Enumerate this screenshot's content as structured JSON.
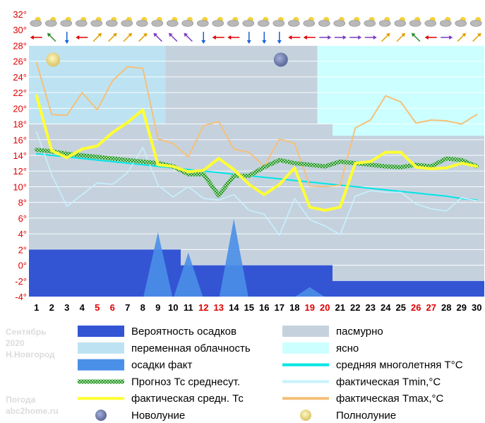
{
  "sidebar": {
    "month": "Сентябрь",
    "year": "2020",
    "city": "Н.Новгород",
    "site_label": "Погода",
    "site": "abc2home.ru"
  },
  "legend": {
    "left": [
      {
        "label": "Вероятность осадков",
        "color": "#3355d4",
        "kind": "box"
      },
      {
        "label": "переменная облачность",
        "color": "#bde3f2",
        "kind": "box"
      },
      {
        "label": "осадки факт",
        "color": "#4a8fe8",
        "kind": "box"
      },
      {
        "label": "Прогноз Тс среднесут.",
        "color": "#2e8b2e",
        "kind": "hatch"
      },
      {
        "label": "фактическая средн. Тс",
        "color": "#ffff33",
        "kind": "line"
      },
      {
        "label": "Новолуние",
        "color": "#6f7fb0",
        "kind": "newmoon"
      }
    ],
    "right": [
      {
        "label": "пасмурно",
        "color": "#c5d2de",
        "kind": "box"
      },
      {
        "label": "ясно",
        "color": "#ccffff",
        "kind": "box"
      },
      {
        "label": "средняя многолетняя T°C",
        "color": "#00e5e5",
        "kind": "line"
      },
      {
        "label": "фактическая Tmin,°C",
        "color": "#c8f2ff",
        "kind": "line"
      },
      {
        "label": "фактическая Tmax,°C",
        "color": "#f5c07a",
        "kind": "line"
      },
      {
        "label": "Полнолуние",
        "color": "#f2e38a",
        "kind": "fullmoon"
      }
    ]
  },
  "chart_data": {
    "type": "line",
    "ylim": [
      -4,
      32
    ],
    "yticks": [
      "-4°",
      "-2°",
      "0°",
      "2°",
      "4°",
      "6°",
      "8°",
      "10°",
      "12°",
      "14°",
      "16°",
      "18°",
      "20°",
      "22°",
      "24°",
      "26°",
      "28°",
      "30°",
      "32°"
    ],
    "x": [
      "1",
      "2",
      "3",
      "4",
      "5",
      "6",
      "7",
      "8",
      "9",
      "10",
      "11",
      "12",
      "13",
      "14",
      "15",
      "16",
      "17",
      "18",
      "19",
      "20",
      "21",
      "22",
      "23",
      "24",
      "25",
      "26",
      "27",
      "28",
      "29",
      "30"
    ],
    "weekend_days": [
      "5",
      "6",
      "12",
      "13",
      "19",
      "20",
      "26",
      "27"
    ],
    "colors": {
      "weekend": "#e00000",
      "weekday": "#000000",
      "ytick": "#e00000"
    },
    "sky_segments": [
      {
        "from": 1,
        "to": 10,
        "sky": "переменная облачность"
      },
      {
        "from": 10,
        "to": 20,
        "sky": "пасмурно"
      },
      {
        "from": 20,
        "to": 30,
        "sky": "ясно"
      }
    ],
    "precip_probability_segments": [
      {
        "from": 1,
        "to": 10,
        "value": 2
      },
      {
        "from": 10,
        "to": 20,
        "value": 0
      },
      {
        "from": 20,
        "to": 30,
        "value": -2
      }
    ],
    "series": [
      {
        "name": "средняя многолетняя T°C",
        "color": "#00e5e5",
        "values": [
          14.2,
          14.0,
          13.8,
          13.6,
          13.4,
          13.2,
          13.0,
          12.8,
          12.6,
          12.4,
          12.2,
          12.0,
          11.8,
          11.6,
          11.4,
          11.2,
          11.0,
          10.8,
          10.6,
          10.4,
          10.2,
          10.0,
          9.8,
          9.6,
          9.4,
          9.2,
          9.0,
          8.8,
          8.5,
          8.3
        ]
      },
      {
        "name": "фактическая Tmin,°C",
        "color": "#c8f2ff",
        "values": [
          17.0,
          11.5,
          7.5,
          9.0,
          10.5,
          10.3,
          11.8,
          15.0,
          10.2,
          8.7,
          10.0,
          8.5,
          8.3,
          9.0,
          7.0,
          6.5,
          3.8,
          8.5,
          5.8,
          5.0,
          3.9,
          8.8,
          9.5,
          9.3,
          9.3,
          7.8,
          7.2,
          6.9,
          8.6,
          8.2
        ]
      },
      {
        "name": "фактическая Tmax,°C",
        "color": "#f5c07a",
        "values": [
          25.8,
          19.2,
          19.1,
          22.0,
          19.8,
          23.5,
          25.3,
          25.1,
          16.1,
          15.5,
          13.8,
          17.8,
          18.3,
          14.8,
          14.4,
          12.6,
          16.1,
          15.5,
          10.1,
          10.0,
          10.2,
          17.5,
          18.5,
          21.6,
          20.8,
          18.1,
          18.5,
          18.4,
          18.0,
          19.2
        ]
      },
      {
        "name": "Прогноз Тс среднесут.",
        "color": "#2e8b2e",
        "values": [
          14.7,
          14.5,
          14.2,
          14.0,
          13.8,
          13.6,
          13.4,
          13.2,
          13.0,
          12.6,
          11.6,
          11.6,
          8.9,
          11.4,
          11.4,
          12.5,
          13.4,
          13.0,
          12.8,
          12.6,
          13.2,
          13.0,
          12.8,
          12.6,
          12.5,
          12.8,
          12.6,
          13.6,
          13.4,
          12.6
        ]
      },
      {
        "name": "фактическая средн. Тс",
        "color": "#ffff33",
        "values": [
          21.6,
          14.6,
          13.7,
          14.8,
          15.2,
          16.9,
          18.2,
          19.8,
          12.8,
          12.6,
          11.9,
          12.1,
          13.6,
          12.2,
          10.3,
          9.0,
          10.3,
          12.4,
          7.4,
          7.0,
          7.4,
          13.0,
          13.2,
          14.4,
          14.4,
          12.5,
          12.3,
          12.4,
          13.0,
          12.6
        ]
      }
    ],
    "precip_fact": [
      {
        "peak_day": 9,
        "value": 4.2
      },
      {
        "peak_day": 11,
        "value": 1.6
      },
      {
        "peak_day": 14,
        "value": 5.9
      },
      {
        "peak_day": 19,
        "value": -2.8
      }
    ],
    "moons": [
      {
        "day": 2,
        "phase": "Полнолуние"
      },
      {
        "day": 17,
        "phase": "Новолуние"
      }
    ],
    "xlabel": "",
    "ylabel": "",
    "title": ""
  }
}
